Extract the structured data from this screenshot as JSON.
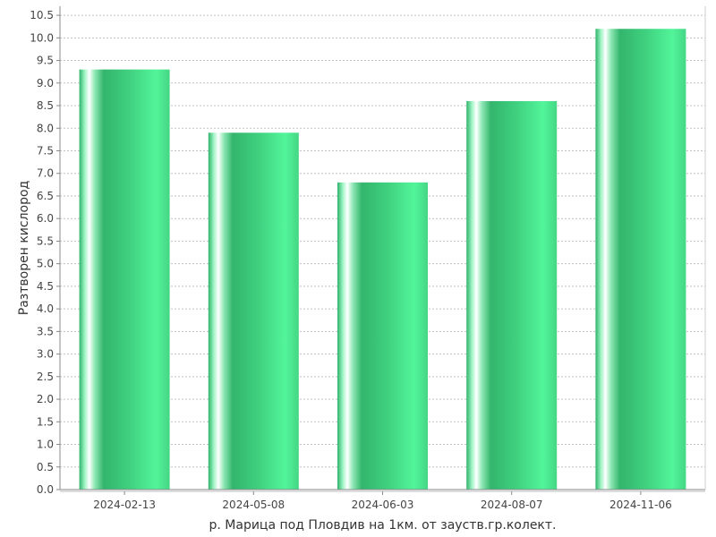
{
  "chart_data": {
    "type": "bar",
    "title": "",
    "xlabel": "р. Марица под Пловдив на 1км. от зауств.гр.колект.",
    "ylabel": "Разтворен кислород",
    "categories": [
      "2024-02-13",
      "2024-05-08",
      "2024-06-03",
      "2024-08-07",
      "2024-11-06"
    ],
    "values": [
      9.3,
      7.9,
      6.8,
      8.6,
      10.2
    ],
    "ylim": [
      0,
      10.7
    ],
    "yticks": [
      0.0,
      0.5,
      1.0,
      1.5,
      2.0,
      2.5,
      3.0,
      3.5,
      4.0,
      4.5,
      5.0,
      5.5,
      6.0,
      6.5,
      7.0,
      7.5,
      8.0,
      8.5,
      9.0,
      9.5,
      10.0,
      10.5
    ],
    "ytick_labels": [
      "0.0",
      "0.5",
      "1.0",
      "1.5",
      "2.0",
      "2.5",
      "3.0",
      "3.5",
      "4.0",
      "4.5",
      "5.0",
      "5.5",
      "6.0",
      "6.5",
      "7.0",
      "7.5",
      "8.0",
      "8.5",
      "9.0",
      "9.5",
      "10.0",
      "10.5"
    ],
    "grid": true,
    "legend": "none",
    "colors": {
      "bar_dark": "#2fb36a",
      "bar_light": "#52f59a",
      "bar_highlight": "#ffffff",
      "grid": "#c0c0c0",
      "axis": "#888888"
    }
  }
}
